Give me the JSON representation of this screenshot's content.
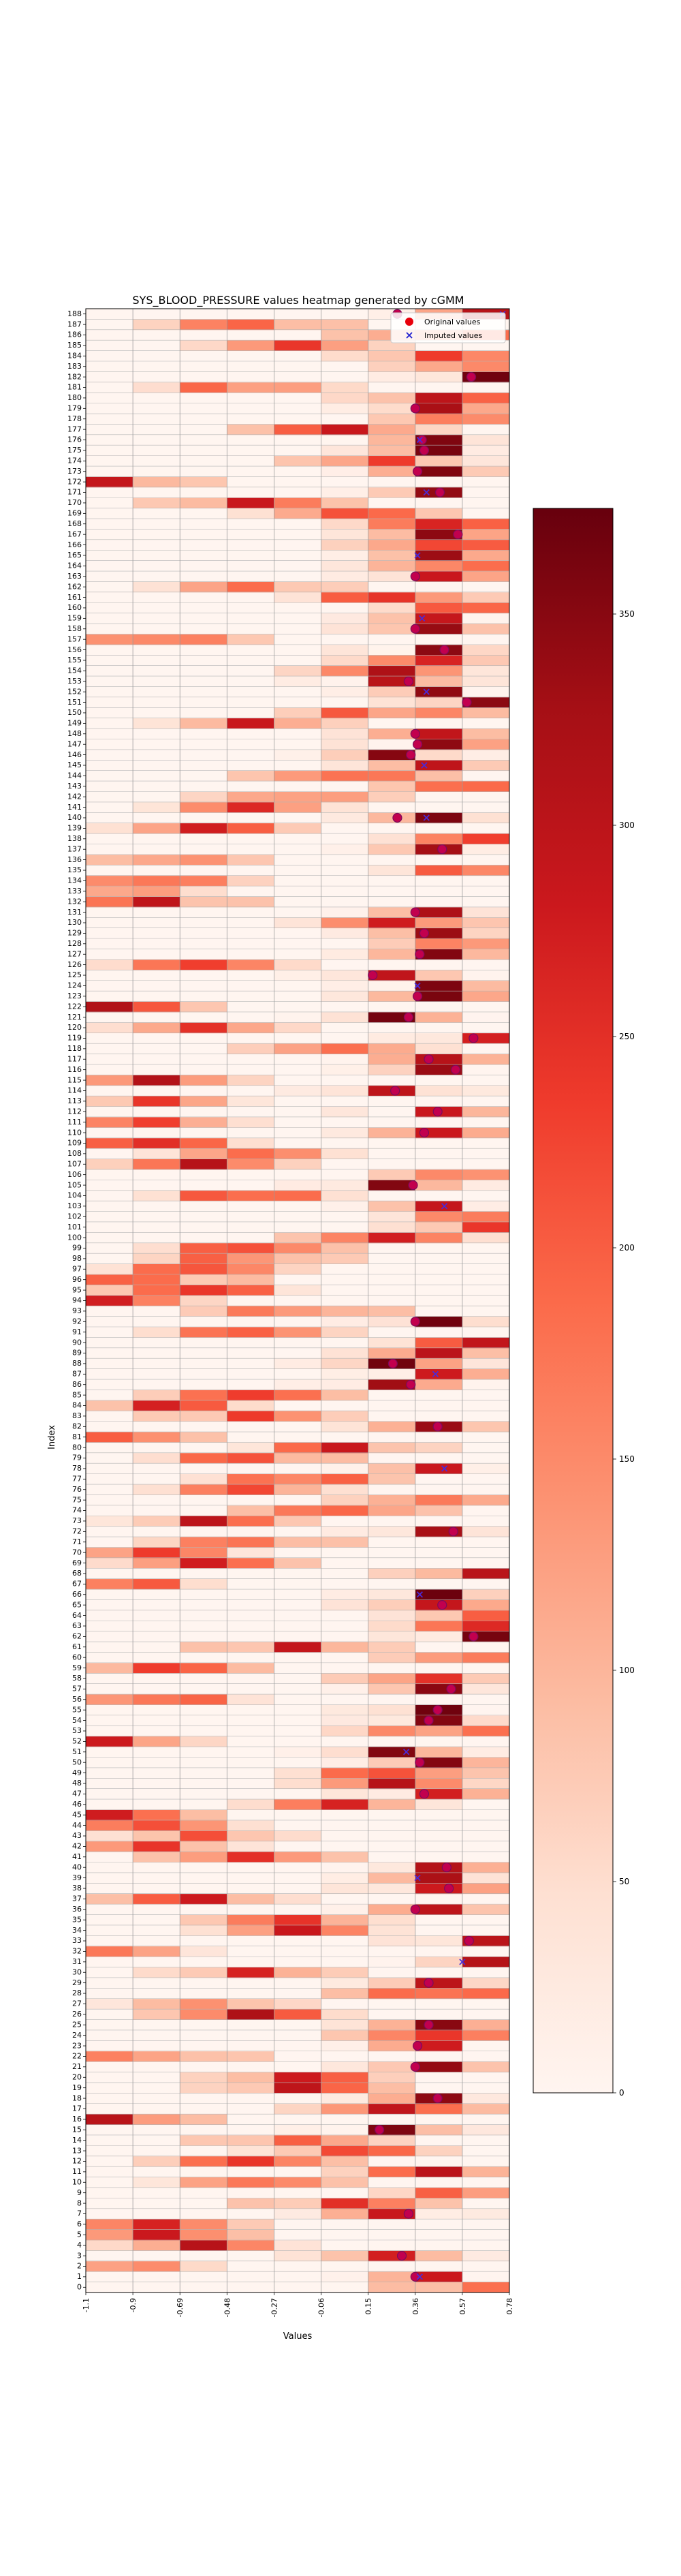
{
  "chart_data": {
    "type": "heatmap",
    "title": "SYS_BLOOD_PRESSURE values heatmap generated by cGMM",
    "xlabel": "Values",
    "ylabel": "Index",
    "x_tick_labels": [
      "-1.1",
      "-0.9",
      "-0.69",
      "-0.48",
      "-0.27",
      "-0.06",
      "0.15",
      "0.36",
      "0.57",
      "0.78"
    ],
    "y_range": [
      0,
      188
    ],
    "colormap": "Reds",
    "colorbar": {
      "range": [
        0,
        375
      ],
      "ticks": [
        0,
        50,
        100,
        150,
        200,
        250,
        300,
        350
      ]
    },
    "grid": true,
    "legend": {
      "placement": "top-right",
      "entries": [
        {
          "label": "Original values",
          "marker": "circle",
          "color": "#e8000b"
        },
        {
          "label": "Imputed values",
          "marker": "x",
          "color": "#1f1fd0"
        }
      ]
    },
    "original_points": [
      {
        "row": 1,
        "x": 0.36
      },
      {
        "row": 3,
        "x": 0.3
      },
      {
        "row": 7,
        "x": 0.33
      },
      {
        "row": 15,
        "x": 0.2
      },
      {
        "row": 18,
        "x": 0.46
      },
      {
        "row": 21,
        "x": 0.36
      },
      {
        "row": 23,
        "x": 0.37
      },
      {
        "row": 25,
        "x": 0.42
      },
      {
        "row": 29,
        "x": 0.42
      },
      {
        "row": 33,
        "x": 0.6
      },
      {
        "row": 36,
        "x": 0.36
      },
      {
        "row": 38,
        "x": 0.51
      },
      {
        "row": 40,
        "x": 0.5
      },
      {
        "row": 47,
        "x": 0.4
      },
      {
        "row": 50,
        "x": 0.38
      },
      {
        "row": 54,
        "x": 0.42
      },
      {
        "row": 55,
        "x": 0.46
      },
      {
        "row": 57,
        "x": 0.52
      },
      {
        "row": 62,
        "x": 0.62
      },
      {
        "row": 65,
        "x": 0.48
      },
      {
        "row": 72,
        "x": 0.53
      },
      {
        "row": 82,
        "x": 0.46
      },
      {
        "row": 86,
        "x": 0.34
      },
      {
        "row": 88,
        "x": 0.26
      },
      {
        "row": 92,
        "x": 0.36
      },
      {
        "row": 105,
        "x": 0.35
      },
      {
        "row": 110,
        "x": 0.4
      },
      {
        "row": 112,
        "x": 0.46
      },
      {
        "row": 114,
        "x": 0.27
      },
      {
        "row": 116,
        "x": 0.54
      },
      {
        "row": 117,
        "x": 0.42
      },
      {
        "row": 119,
        "x": 0.62
      },
      {
        "row": 121,
        "x": 0.33
      },
      {
        "row": 123,
        "x": 0.37
      },
      {
        "row": 125,
        "x": 0.17
      },
      {
        "row": 127,
        "x": 0.38
      },
      {
        "row": 129,
        "x": 0.4
      },
      {
        "row": 131,
        "x": 0.36
      },
      {
        "row": 137,
        "x": 0.48
      },
      {
        "row": 140,
        "x": 0.28
      },
      {
        "row": 146,
        "x": 0.34
      },
      {
        "row": 147,
        "x": 0.37
      },
      {
        "row": 148,
        "x": 0.36
      },
      {
        "row": 151,
        "x": 0.59
      },
      {
        "row": 153,
        "x": 0.33
      },
      {
        "row": 156,
        "x": 0.49
      },
      {
        "row": 158,
        "x": 0.36
      },
      {
        "row": 163,
        "x": 0.36
      },
      {
        "row": 167,
        "x": 0.55
      },
      {
        "row": 171,
        "x": 0.47
      },
      {
        "row": 173,
        "x": 0.37
      },
      {
        "row": 175,
        "x": 0.4
      },
      {
        "row": 176,
        "x": 0.39
      },
      {
        "row": 179,
        "x": 0.36
      },
      {
        "row": 182,
        "x": 0.61
      },
      {
        "row": 188,
        "x": 0.28
      }
    ],
    "imputed_points": [
      {
        "row": 1,
        "x": 0.38
      },
      {
        "row": 31,
        "x": 0.57
      },
      {
        "row": 39,
        "x": 0.37
      },
      {
        "row": 51,
        "x": 0.32
      },
      {
        "row": 66,
        "x": 0.38
      },
      {
        "row": 78,
        "x": 0.49
      },
      {
        "row": 87,
        "x": 0.45
      },
      {
        "row": 103,
        "x": 0.49
      },
      {
        "row": 124,
        "x": 0.37
      },
      {
        "row": 140,
        "x": 0.41
      },
      {
        "row": 145,
        "x": 0.4
      },
      {
        "row": 152,
        "x": 0.41
      },
      {
        "row": 159,
        "x": 0.39
      },
      {
        "row": 165,
        "x": 0.37
      },
      {
        "row": 171,
        "x": 0.41
      },
      {
        "row": 176,
        "x": 0.38
      },
      {
        "row": 188,
        "x": 0.75
      }
    ]
  }
}
